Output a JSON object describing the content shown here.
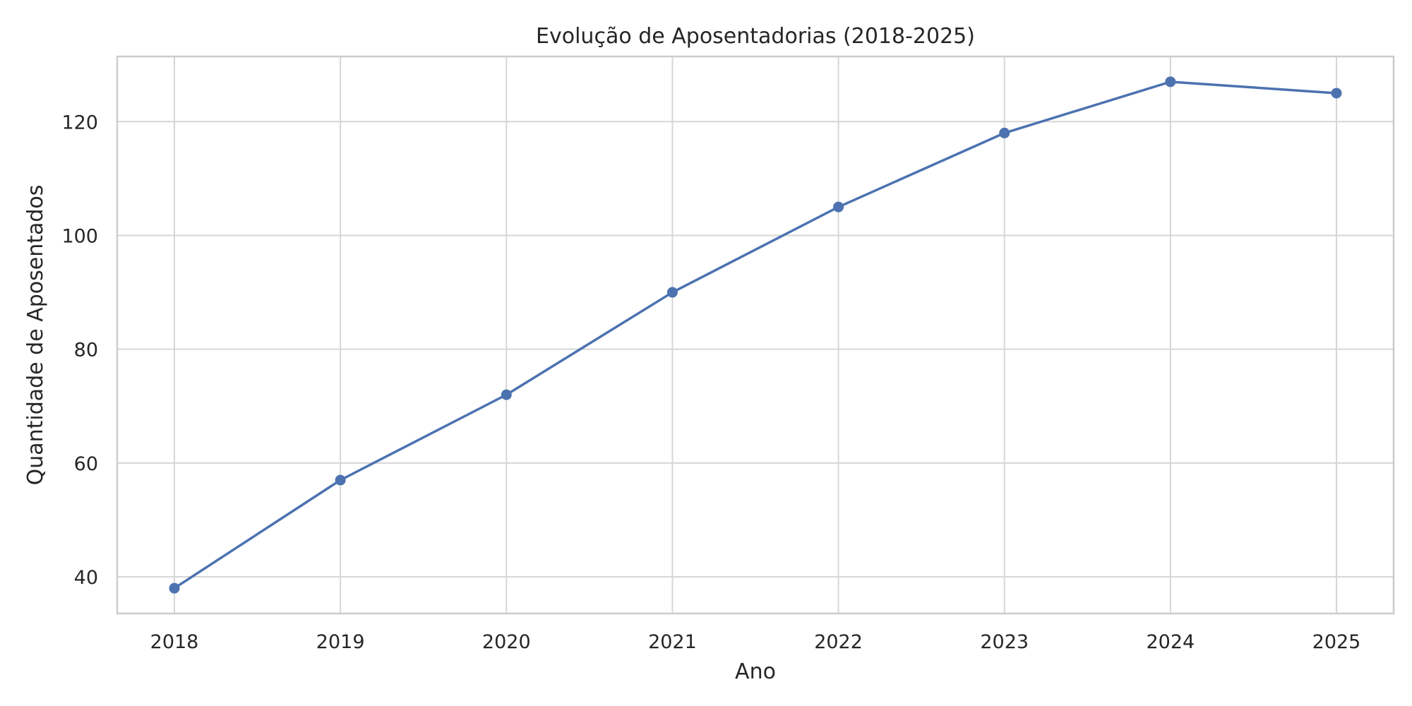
{
  "chart_data": {
    "type": "line",
    "title": "Evolução de Aposentadorias (2018-2025)",
    "xlabel": "Ano",
    "ylabel": "Quantidade de Aposentados",
    "x": [
      "2018",
      "2019",
      "2020",
      "2021",
      "2022",
      "2023",
      "2024",
      "2025"
    ],
    "series": [
      {
        "values": [
          38,
          57,
          72,
          90,
          105,
          118,
          127,
          125
        ],
        "color": "#4c72b0",
        "marker": "circle"
      }
    ],
    "ylim": [
      33.55,
      131.45
    ],
    "yticks": [
      40,
      60,
      80,
      100,
      120
    ],
    "grid": true,
    "legend": "none"
  }
}
